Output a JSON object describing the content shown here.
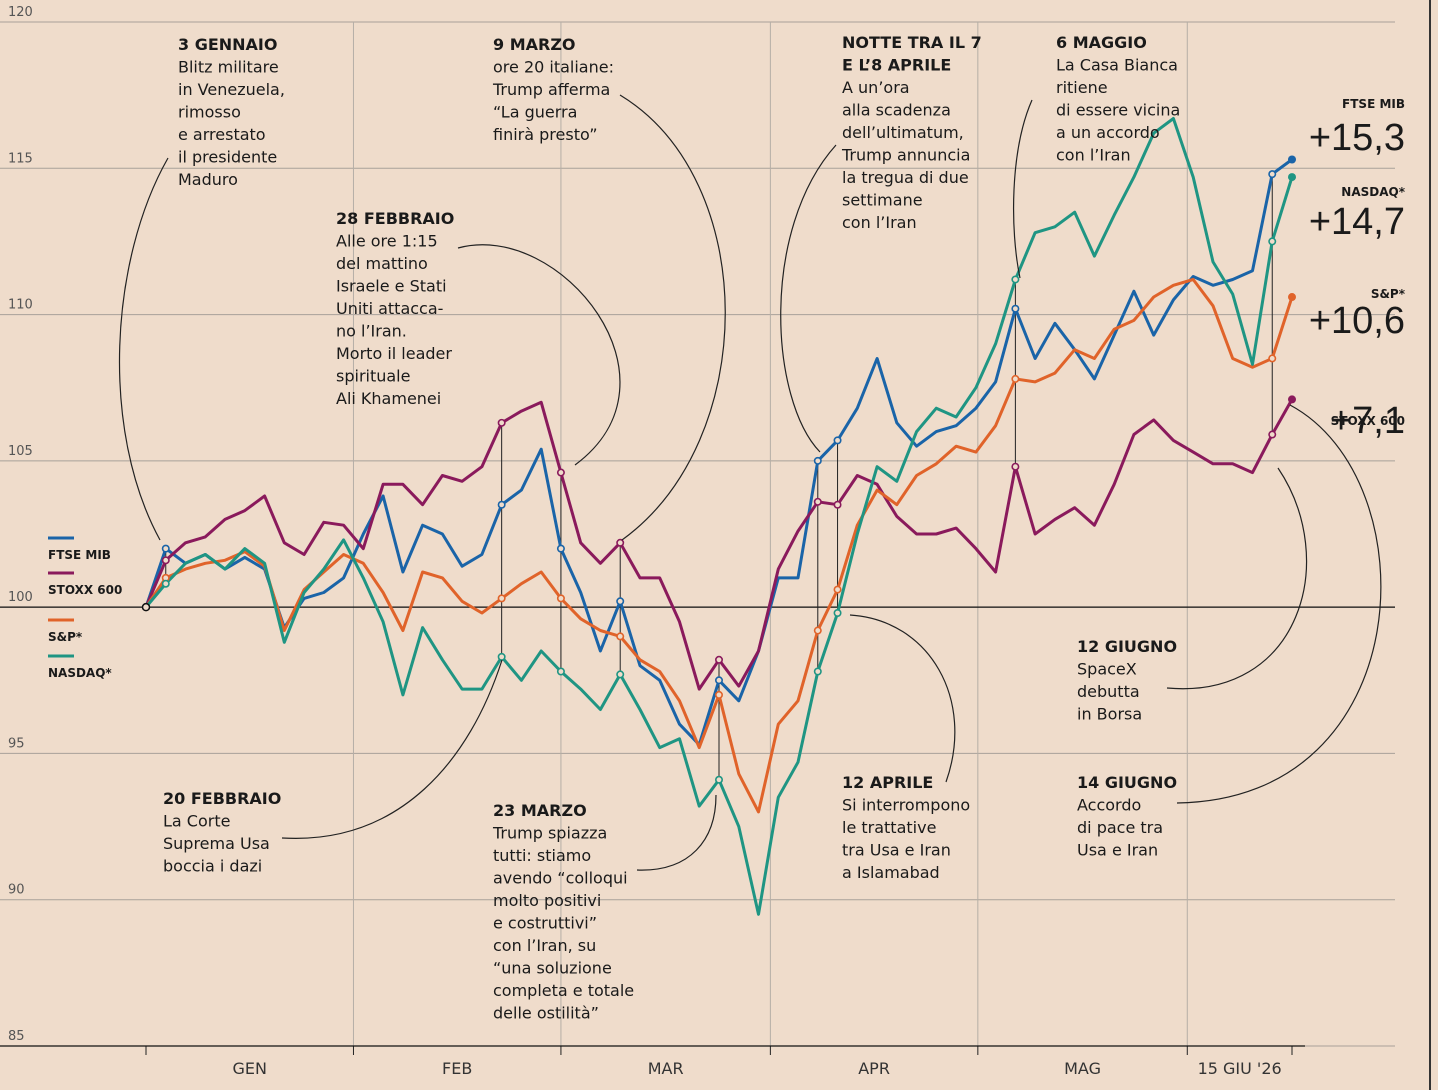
{
  "chart_data": {
    "type": "line",
    "x": [
      0,
      1,
      2,
      3,
      4,
      5,
      6,
      7,
      8,
      9,
      10,
      11,
      12,
      13,
      14,
      15,
      16,
      17,
      18,
      19,
      20,
      21,
      22,
      23,
      24,
      25,
      26,
      27,
      28,
      29,
      30,
      31,
      32,
      33,
      34,
      35,
      36,
      37,
      38,
      39,
      40,
      41,
      42,
      43,
      44,
      45,
      46,
      47,
      48,
      49,
      50,
      51,
      52,
      53,
      54,
      55,
      56,
      57,
      58
    ],
    "xlim": [
      0,
      58
    ],
    "xticks": [
      0,
      10.5,
      21,
      31.6,
      42.1,
      52.7,
      58
    ],
    "categories": [
      "GEN",
      "FEB",
      "MAR",
      "APR",
      "MAG",
      "15 GIU '26"
    ],
    "ylim": [
      85,
      120
    ],
    "yticks": [
      85,
      90,
      95,
      100,
      105,
      110,
      115,
      120
    ],
    "grid": true,
    "reference_line": 100,
    "series": [
      {
        "name": "FTSE MIB",
        "color": "#1a64a8",
        "end_label": "+15,3",
        "values": [
          100,
          102,
          101.5,
          101.8,
          101.3,
          101.7,
          101.3,
          99.3,
          100.3,
          100.5,
          101,
          102.5,
          103.8,
          101.2,
          102.8,
          102.5,
          101.4,
          101.8,
          103.5,
          104,
          105.4,
          102,
          100.5,
          98.5,
          100.2,
          98,
          97.5,
          96,
          95.3,
          97.5,
          96.8,
          98.5,
          101,
          101,
          105,
          105.7,
          106.8,
          108.5,
          106.3,
          105.5,
          106,
          106.2,
          106.8,
          107.7,
          110.2,
          108.5,
          109.7,
          108.8,
          107.8,
          109.3,
          110.8,
          109.3,
          110.5,
          111.3,
          111,
          111.2,
          111.5,
          114.8,
          115.3
        ]
      },
      {
        "name": "STOXX 600",
        "color": "#8a1a5c",
        "end_label": "+7,1",
        "values": [
          100,
          101.6,
          102.2,
          102.4,
          103,
          103.3,
          103.8,
          102.2,
          101.8,
          102.9,
          102.8,
          102,
          104.2,
          104.2,
          103.5,
          104.5,
          104.3,
          104.8,
          106.3,
          106.7,
          107,
          104.6,
          102.2,
          101.5,
          102.2,
          101,
          101,
          99.5,
          97.2,
          98.2,
          97.3,
          98.5,
          101.3,
          102.6,
          103.6,
          103.5,
          104.5,
          104.2,
          103.1,
          102.5,
          102.5,
          102.7,
          102,
          101.2,
          104.8,
          102.5,
          103,
          103.4,
          102.8,
          104.2,
          105.9,
          106.4,
          105.7,
          105.3,
          104.9,
          104.9,
          104.6,
          105.9,
          107.1
        ]
      },
      {
        "name": "S&P*",
        "color": "#e0632a",
        "end_label": "+10,6",
        "values": [
          100,
          101,
          101.3,
          101.5,
          101.6,
          101.9,
          101.4,
          99.2,
          100.6,
          101.2,
          101.8,
          101.5,
          100.5,
          99.2,
          101.2,
          101,
          100.2,
          99.8,
          100.3,
          100.8,
          101.2,
          100.3,
          99.6,
          99.2,
          99,
          98.2,
          97.8,
          96.8,
          95.2,
          97,
          94.3,
          93,
          96,
          96.8,
          99.2,
          100.6,
          102.8,
          104,
          103.5,
          104.5,
          104.9,
          105.5,
          105.3,
          106.2,
          107.8,
          107.7,
          108,
          108.8,
          108.5,
          109.5,
          109.8,
          110.6,
          111,
          111.2,
          110.3,
          108.5,
          108.2,
          108.5,
          110.6
        ]
      },
      {
        "name": "NASDAQ*",
        "color": "#1f9583",
        "end_label": "+14,7",
        "values": [
          100,
          100.8,
          101.5,
          101.8,
          101.3,
          102,
          101.5,
          98.8,
          100.5,
          101.3,
          102.3,
          101,
          99.5,
          97,
          99.3,
          98.2,
          97.2,
          97.2,
          98.3,
          97.5,
          98.5,
          97.8,
          97.2,
          96.5,
          97.7,
          96.5,
          95.2,
          95.5,
          93.2,
          94.1,
          92.5,
          89.5,
          93.5,
          94.7,
          97.8,
          99.8,
          102.5,
          104.8,
          104.3,
          106,
          106.8,
          106.5,
          107.5,
          109,
          111.2,
          112.8,
          113,
          113.5,
          112,
          113.4,
          114.7,
          116.2,
          116.7,
          114.7,
          111.8,
          110.7,
          108.3,
          112.5,
          114.7
        ]
      }
    ],
    "annotations": [
      {
        "title": [
          "3 GENNAIO"
        ],
        "lines": [
          "Blitz militare",
          "in Venezuela,",
          "rimosso",
          "e arrestato",
          "il presidente",
          "Maduro"
        ]
      },
      {
        "title": [
          "28 FEBBRAIO"
        ],
        "lines": [
          "Alle ore 1:15",
          "del mattino",
          "Israele e Stati",
          "Uniti attacca-",
          "no l’Iran.",
          "Morto il leader",
          "spirituale",
          "Ali Khamenei"
        ]
      },
      {
        "title": [
          "9 MARZO"
        ],
        "lines": [
          "ore 20 italiane:",
          "Trump afferma",
          "“La guerra",
          "finirà presto”"
        ]
      },
      {
        "title": [
          "NOTTE TRA IL 7",
          "E L’8 APRILE"
        ],
        "lines": [
          "A un’ora",
          "alla scadenza",
          "dell’ultimatum,",
          "Trump annuncia",
          "la tregua di due",
          "settimane",
          "con l’Iran"
        ]
      },
      {
        "title": [
          "6 MAGGIO"
        ],
        "lines": [
          "La Casa Bianca",
          "ritiene",
          "di essere vicina",
          "a un accordo",
          "con l’Iran"
        ]
      },
      {
        "title": [
          "20 FEBBRAIO"
        ],
        "lines": [
          "La Corte",
          "Suprema Usa",
          "boccia i dazi"
        ]
      },
      {
        "title": [
          "23 MARZO"
        ],
        "lines": [
          "Trump spiazza",
          "tutti: stiamo",
          "avendo “colloqui",
          "molto positivi",
          "e costruttivi”",
          "con l’Iran, su",
          "“una soluzione",
          "completa e totale",
          "delle ostilità”"
        ]
      },
      {
        "title": [
          "12 APRILE"
        ],
        "lines": [
          "Si interrompono",
          "le trattative",
          "tra Usa e Iran",
          "a Islamabad"
        ]
      },
      {
        "title": [
          "12 GIUGNO"
        ],
        "lines": [
          "SpaceX",
          "debutta",
          "in Borsa"
        ]
      },
      {
        "title": [
          "14 GIUGNO"
        ],
        "lines": [
          "Accordo",
          "di pace tra",
          "Usa e Iran"
        ]
      }
    ]
  }
}
